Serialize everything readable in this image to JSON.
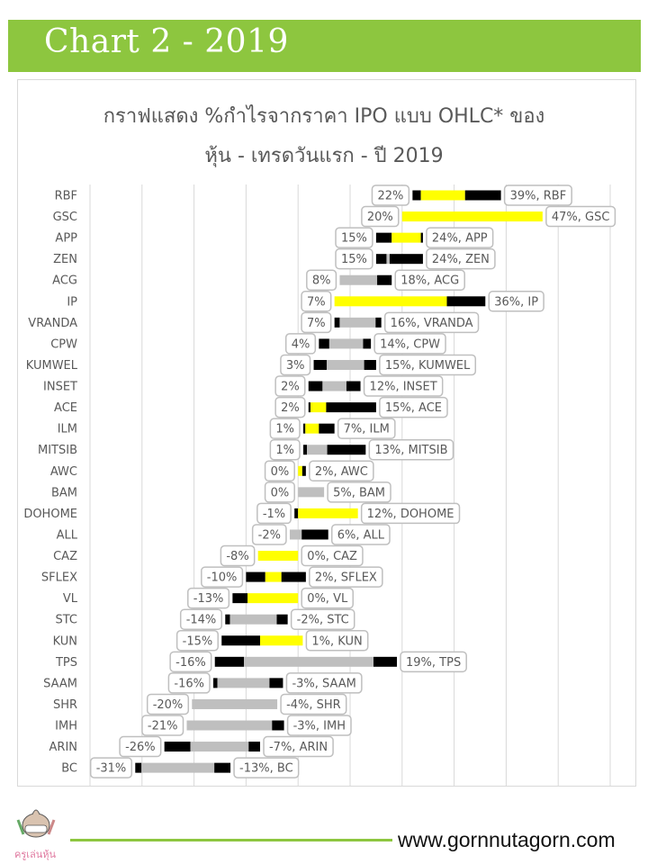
{
  "banner": {
    "title": "Chart 2 - 2019"
  },
  "footer": {
    "url": "www.gornnutagorn.com",
    "logo_text": "ครูเล่นหุ้น"
  },
  "colors": {
    "banner": "#8dc63f",
    "up_body": "#ffff00",
    "down_body": "#bfbfbf",
    "wick": "#000000",
    "grid": "#d9d9d9"
  },
  "chart_data": {
    "type": "ohlc-floating-bar",
    "title_line1": "กราฟแสดง %กำไรจากราคา IPO แบบ OHLC* ของ",
    "title_line2": "หุ้น - เทรดวันแรก - ปี 2019",
    "xlim": [
      -40,
      60
    ],
    "grid_step": 10,
    "grid": true,
    "unit": "%",
    "rows": [
      {
        "name": "RBF",
        "low": 22,
        "open": 23.6,
        "close": 32.1,
        "high": 39,
        "low_label": "22%",
        "high_label": "39%, RBF"
      },
      {
        "name": "GSC",
        "low": 20,
        "open": 20,
        "close": 47,
        "high": 47,
        "low_label": "20%",
        "high_label": "47%, GSC"
      },
      {
        "name": "APP",
        "low": 15,
        "open": 18,
        "close": 23.6,
        "high": 24,
        "low_label": "15%",
        "high_label": "24%, APP"
      },
      {
        "name": "ZEN",
        "low": 15,
        "open": 17.6,
        "close": 17,
        "high": 24,
        "low_label": "15%",
        "high_label": "24%, ZEN"
      },
      {
        "name": "ACG",
        "low": 8,
        "open": 15.2,
        "close": 8,
        "high": 18,
        "low_label": "8%",
        "high_label": "18%, ACG"
      },
      {
        "name": "IP",
        "low": 7,
        "open": 7,
        "close": 28.6,
        "high": 36,
        "low_label": "7%",
        "high_label": "36%, IP"
      },
      {
        "name": "VRANDA",
        "low": 7,
        "open": 14.9,
        "close": 8,
        "high": 16,
        "low_label": "7%",
        "high_label": "16%, VRANDA"
      },
      {
        "name": "CPW",
        "low": 4,
        "open": 12.5,
        "close": 6,
        "high": 14,
        "low_label": "4%",
        "high_label": "14%, CPW"
      },
      {
        "name": "KUMWEL",
        "low": 3,
        "open": 12.7,
        "close": 5.5,
        "high": 15,
        "low_label": "3%",
        "high_label": "15%, KUMWEL"
      },
      {
        "name": "INSET",
        "low": 2,
        "open": 9.3,
        "close": 4.7,
        "high": 12,
        "low_label": "2%",
        "high_label": "12%, INSET"
      },
      {
        "name": "ACE",
        "low": 2,
        "open": 2.4,
        "close": 5.4,
        "high": 15,
        "low_label": "2%",
        "high_label": "15%, ACE"
      },
      {
        "name": "ILM",
        "low": 1,
        "open": 1.4,
        "close": 4,
        "high": 7,
        "low_label": "1%",
        "high_label": "7%, ILM"
      },
      {
        "name": "MITSIB",
        "low": 1,
        "open": 5.6,
        "close": 1.7,
        "high": 13,
        "low_label": "1%",
        "high_label": "13%, MITSIB"
      },
      {
        "name": "AWC",
        "low": 0,
        "open": 0,
        "close": 0.8,
        "high": 1.5,
        "low_label": "0%",
        "high_label": "2%, AWC"
      },
      {
        "name": "BAM",
        "low": 0,
        "open": 5,
        "close": 0,
        "high": 5,
        "low_label": "0%",
        "high_label": "5%, BAM"
      },
      {
        "name": "DOHOME",
        "low": -0.7,
        "open": 0,
        "close": 11.5,
        "high": 11.5,
        "low_label": "-1%",
        "high_label": "12%, DOHOME"
      },
      {
        "name": "ALL",
        "low": -1.6,
        "open": 0.7,
        "close": -1.6,
        "high": 5.8,
        "low_label": "-2%",
        "high_label": "6%, ALL"
      },
      {
        "name": "CAZ",
        "low": -7.7,
        "open": -7.7,
        "close": 0,
        "high": 0,
        "low_label": "-8%",
        "high_label": "0%, CAZ"
      },
      {
        "name": "SFLEX",
        "low": -10,
        "open": -6.3,
        "close": -3.2,
        "high": 1.5,
        "low_label": "-10%",
        "high_label": "2%, SFLEX"
      },
      {
        "name": "VL",
        "low": -12.6,
        "open": -9.7,
        "close": 0,
        "high": 0,
        "low_label": "-13%",
        "high_label": "0%, VL"
      },
      {
        "name": "STC",
        "low": -14,
        "open": -4.1,
        "close": -13.1,
        "high": -2,
        "low_label": "-14%",
        "high_label": "-2%, STC"
      },
      {
        "name": "KUN",
        "low": -14.7,
        "open": -7.3,
        "close": 0.9,
        "high": 0.9,
        "low_label": "-15%",
        "high_label": "1%, KUN"
      },
      {
        "name": "TPS",
        "low": -16,
        "open": 14.5,
        "close": -10.4,
        "high": 19,
        "low_label": "-16%",
        "high_label": "19%, TPS"
      },
      {
        "name": "SAAM",
        "low": -16.3,
        "open": -5.5,
        "close": -15.5,
        "high": -2.9,
        "low_label": "-16%",
        "high_label": "-3%, SAAM"
      },
      {
        "name": "SHR",
        "low": -20.4,
        "open": -4,
        "close": -20.4,
        "high": -4,
        "low_label": "-20%",
        "high_label": "-4%, SHR"
      },
      {
        "name": "IMH",
        "low": -21.4,
        "open": -5,
        "close": -21.4,
        "high": -2.7,
        "low_label": "-21%",
        "high_label": "-3%, IMH"
      },
      {
        "name": "ARIN",
        "low": -25.7,
        "open": -9.5,
        "close": -20.7,
        "high": -7.3,
        "low_label": "-26%",
        "high_label": "-7%, ARIN"
      },
      {
        "name": "BC",
        "low": -31.3,
        "open": -16.1,
        "close": -30.1,
        "high": -13,
        "low_label": "-31%",
        "high_label": "-13%, BC"
      }
    ]
  }
}
